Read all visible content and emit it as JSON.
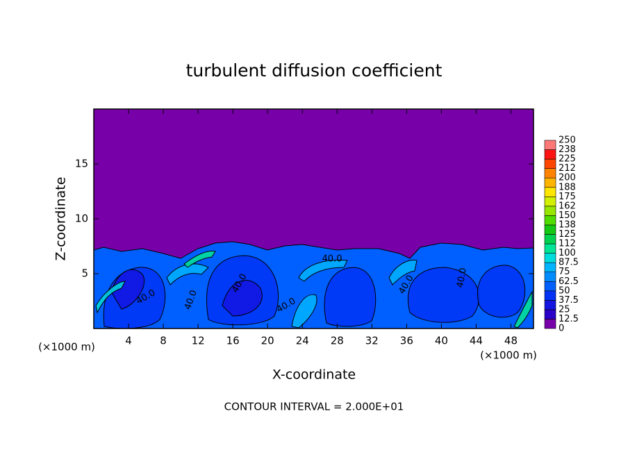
{
  "chart_data": {
    "type": "contour",
    "title": "turbulent diffusion coefficient",
    "x_label": "X-coordinate",
    "y_label": "Z-coordinate",
    "x_unit": "(×1000 m)",
    "xlim": [
      0,
      50.6
    ],
    "xticks": [
      4,
      8,
      12,
      16,
      20,
      24,
      28,
      32,
      36,
      40,
      44,
      48
    ],
    "ylim": [
      0,
      20
    ],
    "yticks": [
      5,
      10,
      15
    ],
    "levels": [
      0,
      12.5,
      25,
      37.5,
      50,
      62.5,
      75,
      87.5,
      100,
      112,
      125,
      138,
      150,
      162,
      175,
      188,
      200,
      212,
      225,
      238,
      250
    ],
    "colors": [
      "#7800a8",
      "#2a00c8",
      "#1414e0",
      "#0032f5",
      "#0060ff",
      "#008cff",
      "#00b4ff",
      "#00dcdc",
      "#00e696",
      "#00d250",
      "#14c814",
      "#50dc00",
      "#96e600",
      "#d2f000",
      "#ffe600",
      "#ffb400",
      "#ff8200",
      "#ff4600",
      "#ff1414",
      "#ff7878"
    ],
    "contour_labels": [
      "40.0",
      "40.0",
      "40.0",
      "40.0",
      "40.0",
      "40.0",
      "40.0"
    ],
    "note": "CONTOUR INTERVAL = 2.000E+01"
  }
}
